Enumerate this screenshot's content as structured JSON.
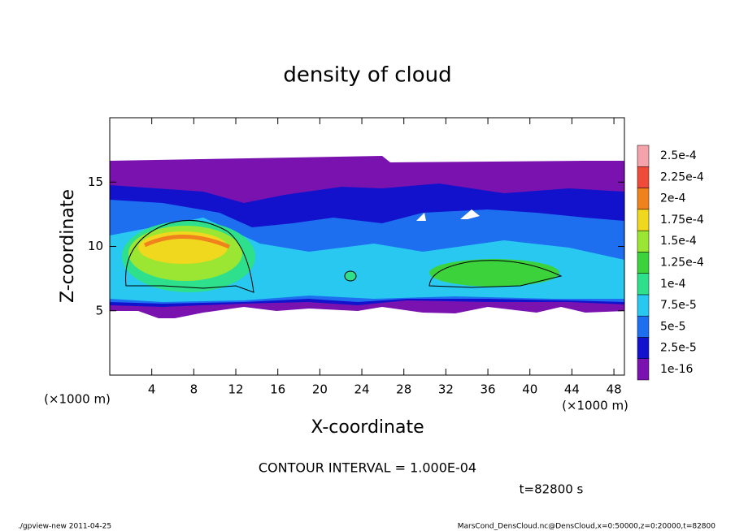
{
  "chart_data": {
    "type": "contour",
    "title": "density of cloud",
    "x_label": "X-coordinate",
    "y_label": "Z-coordinate",
    "x_unit_left": "(×1000 m)",
    "x_unit_right": "(×1000 m)",
    "xlim": [
      0,
      49
    ],
    "ylim": [
      0,
      20
    ],
    "xticks": [
      4,
      8,
      12,
      16,
      20,
      24,
      28,
      32,
      36,
      40,
      44,
      48
    ],
    "yticks": [
      5,
      10,
      15
    ],
    "levels": [
      {
        "value": 1e-16,
        "label": "1e-16"
      },
      {
        "value": 2.5e-05,
        "label": "2.5e-5"
      },
      {
        "value": 5e-05,
        "label": "5e-5"
      },
      {
        "value": 7.5e-05,
        "label": "7.5e-5"
      },
      {
        "value": 0.0001,
        "label": "1e-4"
      },
      {
        "value": 0.000125,
        "label": "1.25e-4"
      },
      {
        "value": 0.00015,
        "label": "1.5e-4"
      },
      {
        "value": 0.000175,
        "label": "1.75e-4"
      },
      {
        "value": 0.0002,
        "label": "2e-4"
      },
      {
        "value": 0.000225,
        "label": "2.25e-4"
      },
      {
        "value": 0.00025,
        "label": "2.5e-4"
      }
    ],
    "colors": [
      "#7a12b0",
      "#1212cc",
      "#1e6ef0",
      "#28c8f0",
      "#2ee08c",
      "#3cd23c",
      "#9ae632",
      "#f0d81e",
      "#f0821e",
      "#f04a3a",
      "#f5a3ab"
    ],
    "contour_interval": "CONTOUR INTERVAL = 1.000E-04",
    "time": "t=82800 s",
    "footer_left": "./gpview-new   2011-04-25",
    "footer_right": "MarsCond_DensCloud.nc@DensCloud,x=0:50000,z=0:20000,t=82800"
  }
}
